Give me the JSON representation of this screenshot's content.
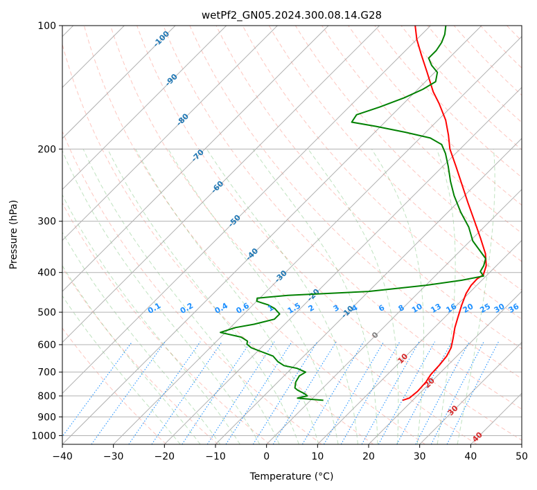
{
  "chart_data": {
    "type": "line",
    "title": "wetPf2_GN05.2024.300.08.14.G28",
    "xlabel": "Temperature (°C)",
    "ylabel": "Pressure (hPa)",
    "xlim": [
      -40,
      50
    ],
    "ylim_pressure": [
      1050,
      100
    ],
    "y_scale": "log",
    "x_ticks": [
      -40,
      -30,
      -20,
      -10,
      0,
      10,
      20,
      30,
      40,
      50
    ],
    "y_ticks": [
      1000,
      900,
      800,
      700,
      600,
      500,
      400,
      300,
      200,
      100
    ],
    "skew_degrees": 45,
    "grid": true,
    "series": [
      {
        "color": "#ff0000",
        "points": [
          {
            "p": 820,
            "t": 18.0
          },
          {
            "p": 810,
            "t": 18.9
          },
          {
            "p": 780,
            "t": 19.2
          },
          {
            "p": 740,
            "t": 19.0
          },
          {
            "p": 710,
            "t": 18.5
          },
          {
            "p": 670,
            "t": 18.3
          },
          {
            "p": 640,
            "t": 18.0
          },
          {
            "p": 610,
            "t": 17.2
          },
          {
            "p": 580,
            "t": 15.8
          },
          {
            "p": 545,
            "t": 14.0
          },
          {
            "p": 515,
            "t": 12.6
          },
          {
            "p": 480,
            "t": 10.9
          },
          {
            "p": 450,
            "t": 9.5
          },
          {
            "p": 430,
            "t": 8.9
          },
          {
            "p": 415,
            "t": 8.8
          },
          {
            "p": 405,
            "t": 9.2
          },
          {
            "p": 385,
            "t": 8.0
          },
          {
            "p": 360,
            "t": 5.5
          },
          {
            "p": 330,
            "t": 1.5
          },
          {
            "p": 300,
            "t": -3.0
          },
          {
            "p": 270,
            "t": -8.0
          },
          {
            "p": 245,
            "t": -12.5
          },
          {
            "p": 220,
            "t": -17.5
          },
          {
            "p": 200,
            "t": -22.0
          },
          {
            "p": 185,
            "t": -25.0
          },
          {
            "p": 170,
            "t": -28.5
          },
          {
            "p": 155,
            "t": -33.0
          },
          {
            "p": 145,
            "t": -36.5
          },
          {
            "p": 130,
            "t": -41.5
          },
          {
            "p": 118,
            "t": -46.0
          },
          {
            "p": 108,
            "t": -50.0
          },
          {
            "p": 100,
            "t": -53.0
          }
        ]
      },
      {
        "color": "#008000",
        "points": [
          {
            "p": 820,
            "t": 2.5
          },
          {
            "p": 815,
            "t": -0.5
          },
          {
            "p": 810,
            "t": -3.0
          },
          {
            "p": 800,
            "t": -1.5
          },
          {
            "p": 790,
            "t": -2.5
          },
          {
            "p": 775,
            "t": -4.5
          },
          {
            "p": 765,
            "t": -5.5
          },
          {
            "p": 740,
            "t": -6.5
          },
          {
            "p": 715,
            "t": -7.0
          },
          {
            "p": 700,
            "t": -6.5
          },
          {
            "p": 685,
            "t": -9.0
          },
          {
            "p": 675,
            "t": -12.0
          },
          {
            "p": 660,
            "t": -14.0
          },
          {
            "p": 640,
            "t": -16.0
          },
          {
            "p": 625,
            "t": -19.0
          },
          {
            "p": 610,
            "t": -22.0
          },
          {
            "p": 598,
            "t": -23.5
          },
          {
            "p": 588,
            "t": -24.0
          },
          {
            "p": 575,
            "t": -26.0
          },
          {
            "p": 560,
            "t": -31.0
          },
          {
            "p": 545,
            "t": -29.0
          },
          {
            "p": 535,
            "t": -26.0
          },
          {
            "p": 520,
            "t": -23.0
          },
          {
            "p": 505,
            "t": -23.0
          },
          {
            "p": 490,
            "t": -25.0
          },
          {
            "p": 480,
            "t": -27.0
          },
          {
            "p": 470,
            "t": -30.0
          },
          {
            "p": 462,
            "t": -30.5
          },
          {
            "p": 455,
            "t": -25.0
          },
          {
            "p": 445,
            "t": -10.0
          },
          {
            "p": 430,
            "t": 0.0
          },
          {
            "p": 418,
            "t": 6.0
          },
          {
            "p": 408,
            "t": 9.5
          },
          {
            "p": 398,
            "t": 8.0
          },
          {
            "p": 385,
            "t": 7.5
          },
          {
            "p": 370,
            "t": 6.5
          },
          {
            "p": 355,
            "t": 4.0
          },
          {
            "p": 335,
            "t": 0.5
          },
          {
            "p": 310,
            "t": -3.0
          },
          {
            "p": 285,
            "t": -7.5
          },
          {
            "p": 260,
            "t": -12.0
          },
          {
            "p": 240,
            "t": -15.5
          },
          {
            "p": 220,
            "t": -19.0
          },
          {
            "p": 205,
            "t": -22.0
          },
          {
            "p": 195,
            "t": -24.5
          },
          {
            "p": 188,
            "t": -28.0
          },
          {
            "p": 182,
            "t": -34.0
          },
          {
            "p": 176,
            "t": -41.0
          },
          {
            "p": 172,
            "t": -46.5
          },
          {
            "p": 165,
            "t": -47.0
          },
          {
            "p": 158,
            "t": -44.0
          },
          {
            "p": 150,
            "t": -41.0
          },
          {
            "p": 143,
            "t": -39.0
          },
          {
            "p": 137,
            "t": -38.0
          },
          {
            "p": 130,
            "t": -39.5
          },
          {
            "p": 125,
            "t": -42.0
          },
          {
            "p": 120,
            "t": -44.0
          },
          {
            "p": 115,
            "t": -44.0
          },
          {
            "p": 110,
            "t": -44.5
          },
          {
            "p": 105,
            "t": -45.5
          },
          {
            "p": 100,
            "t": -47.0
          }
        ]
      }
    ],
    "isotherm_labels": [
      {
        "text": "-100",
        "t": -100
      },
      {
        "text": "-90",
        "t": -90
      },
      {
        "text": "-80",
        "t": -80
      },
      {
        "text": "-70",
        "t": -70
      },
      {
        "text": "-60",
        "t": -60
      },
      {
        "text": "-50",
        "t": -50
      },
      {
        "text": "-40",
        "t": -40
      },
      {
        "text": "-30",
        "t": -30
      },
      {
        "text": "-20",
        "t": -20
      },
      {
        "text": "-10",
        "t": -10
      },
      {
        "text": "0",
        "t": 0
      },
      {
        "text": "10",
        "t": 10
      },
      {
        "text": "20",
        "t": 20
      },
      {
        "text": "30",
        "t": 30
      },
      {
        "text": "40",
        "t": 40
      }
    ],
    "mixing_ratio_labels": [
      "0.1",
      "0.2",
      "0.4",
      "0.6",
      "1",
      "1.5",
      "2",
      "3",
      "4",
      "6",
      "8",
      "10",
      "13",
      "16",
      "20",
      "25",
      "30",
      "36"
    ],
    "colors": {
      "temperature": "#ff0000",
      "dewpoint": "#008000",
      "isotherm_cold_label": "#1f77b4",
      "isotherm_zero_label": "#808080",
      "isotherm_warm_label": "#d62728",
      "mixing_ratio": "#1e90ff",
      "dry_adiabat": "#fa8072",
      "moist_adiabat": "#2ca02c",
      "grid": "#b0b0b0"
    }
  }
}
